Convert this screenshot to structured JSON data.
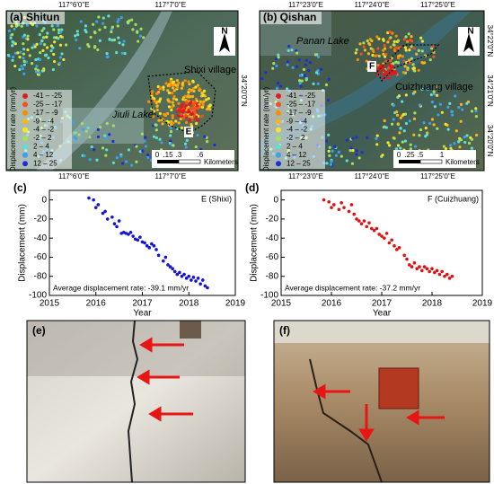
{
  "maps": [
    {
      "label": "(a) Shitun",
      "places": [
        "Shixi village",
        "Jiuli Lake"
      ],
      "point": "E",
      "north": "N",
      "top_ticks": [
        "117°6'0\"E",
        "117°7'0\"E"
      ],
      "bottom_ticks": [
        "117°6'0\"E",
        "117°7'0\"E"
      ],
      "side_ticks": [
        "34°20'0\"N"
      ],
      "scale": [
        "0",
        ".15",
        ".3",
        ".6",
        "Kilometers"
      ]
    },
    {
      "label": "(b) Qishan",
      "places": [
        "Cuizhuang village",
        "Panan Lake"
      ],
      "point": "F",
      "north": "N",
      "top_ticks": [
        "117°23'0\"E",
        "117°24'0\"E",
        "117°25'0\"E"
      ],
      "bottom_ticks": [
        "117°23'0\"E",
        "117°24'0\"E",
        "117°25'0\"E"
      ],
      "side_ticks": [
        "34°22'0\"N",
        "34°21'0\"N",
        "34°20'0\"N"
      ],
      "scale": [
        "0",
        ".25",
        ".5",
        "1",
        "Kilometers"
      ]
    }
  ],
  "legend": {
    "title": "Displacement rate (mm/yr)",
    "classes": [
      {
        "label": "-41 – -25",
        "color": "#e31a1c"
      },
      {
        "label": "-25 – -17",
        "color": "#f4511e"
      },
      {
        "label": "-17 – -9",
        "color": "#fb8c00"
      },
      {
        "label": "-9 – -4",
        "color": "#fdb515"
      },
      {
        "label": "-4 – -2",
        "color": "#f5e52a"
      },
      {
        "label": "-2 – 2",
        "color": "#a6e05a"
      },
      {
        "label": "2 – 4",
        "color": "#5fe0d0"
      },
      {
        "label": "4 – 12",
        "color": "#3aa0f0"
      },
      {
        "label": "12 – 25",
        "color": "#1c2fd6"
      }
    ]
  },
  "chart_data": [
    {
      "type": "scatter",
      "panel_label": "(c)",
      "title": "E (Shixi)",
      "annotation": "Average displacement rate: -39.1 mm/yr",
      "x_label": "Year",
      "y_label": "Displacement (mm)",
      "color": "#1515d0",
      "xlim": [
        2015,
        2019
      ],
      "xticks": [
        2015,
        2016,
        2017,
        2018,
        2019
      ],
      "ylim": [
        -100,
        10
      ],
      "yticks": [
        -100,
        -80,
        -60,
        -40,
        -20,
        0
      ],
      "x": [
        2015.85,
        2015.95,
        2016.0,
        2016.05,
        2016.15,
        2016.2,
        2016.25,
        2016.35,
        2016.4,
        2016.45,
        2016.5,
        2016.55,
        2016.6,
        2016.65,
        2016.7,
        2016.75,
        2016.8,
        2016.85,
        2016.9,
        2016.95,
        2017.0,
        2017.05,
        2017.1,
        2017.15,
        2017.2,
        2017.25,
        2017.3,
        2017.35,
        2017.45,
        2017.5,
        2017.55,
        2017.6,
        2017.65,
        2017.7,
        2017.75,
        2017.8,
        2017.85,
        2017.9,
        2017.95,
        2018.0,
        2018.05,
        2018.1,
        2018.15,
        2018.2,
        2018.25,
        2018.3,
        2018.35,
        2018.4
      ],
      "values": [
        2,
        0,
        -8,
        -5,
        -14,
        -12,
        -20,
        -18,
        -25,
        -28,
        -22,
        -35,
        -34,
        -35,
        -36,
        -34,
        -38,
        -41,
        -42,
        -39,
        -44,
        -45,
        -48,
        -50,
        -46,
        -48,
        -52,
        -58,
        -64,
        -60,
        -68,
        -70,
        -72,
        -75,
        -78,
        -76,
        -80,
        -78,
        -82,
        -80,
        -84,
        -81,
        -85,
        -82,
        -88,
        -84,
        -90,
        -92
      ]
    },
    {
      "type": "scatter",
      "panel_label": "(d)",
      "title": "F (Cuizhuang)",
      "annotation": "Average displacement rate: -37.2 mm/yr",
      "x_label": "Year",
      "y_label": "Displacement (mm)",
      "color": "#e01010",
      "xlim": [
        2015,
        2019
      ],
      "xticks": [
        2015,
        2016,
        2017,
        2018,
        2019
      ],
      "ylim": [
        -100,
        10
      ],
      "yticks": [
        -100,
        -80,
        -60,
        -40,
        -20,
        0
      ],
      "x": [
        2015.85,
        2015.95,
        2016.0,
        2016.05,
        2016.15,
        2016.2,
        2016.25,
        2016.35,
        2016.4,
        2016.45,
        2016.5,
        2016.55,
        2016.6,
        2016.65,
        2016.7,
        2016.75,
        2016.8,
        2016.85,
        2016.9,
        2016.95,
        2017.0,
        2017.05,
        2017.1,
        2017.15,
        2017.2,
        2017.25,
        2017.3,
        2017.35,
        2017.45,
        2017.5,
        2017.55,
        2017.6,
        2017.65,
        2017.7,
        2017.75,
        2017.8,
        2017.85,
        2017.9,
        2017.95,
        2018.0,
        2018.05,
        2018.1,
        2018.15,
        2018.2,
        2018.25,
        2018.3,
        2018.35,
        2018.4
      ],
      "values": [
        0,
        -2,
        -8,
        -5,
        -10,
        -3,
        -8,
        -12,
        -5,
        -15,
        -20,
        -22,
        -25,
        -22,
        -28,
        -24,
        -30,
        -32,
        -30,
        -36,
        -38,
        -40,
        -35,
        -45,
        -42,
        -48,
        -52,
        -50,
        -58,
        -62,
        -68,
        -70,
        -66,
        -72,
        -70,
        -74,
        -70,
        -72,
        -75,
        -72,
        -76,
        -74,
        -78,
        -75,
        -80,
        -78,
        -82,
        -80
      ]
    }
  ],
  "photos": [
    {
      "label": "(e)"
    },
    {
      "label": "(f)"
    }
  ]
}
